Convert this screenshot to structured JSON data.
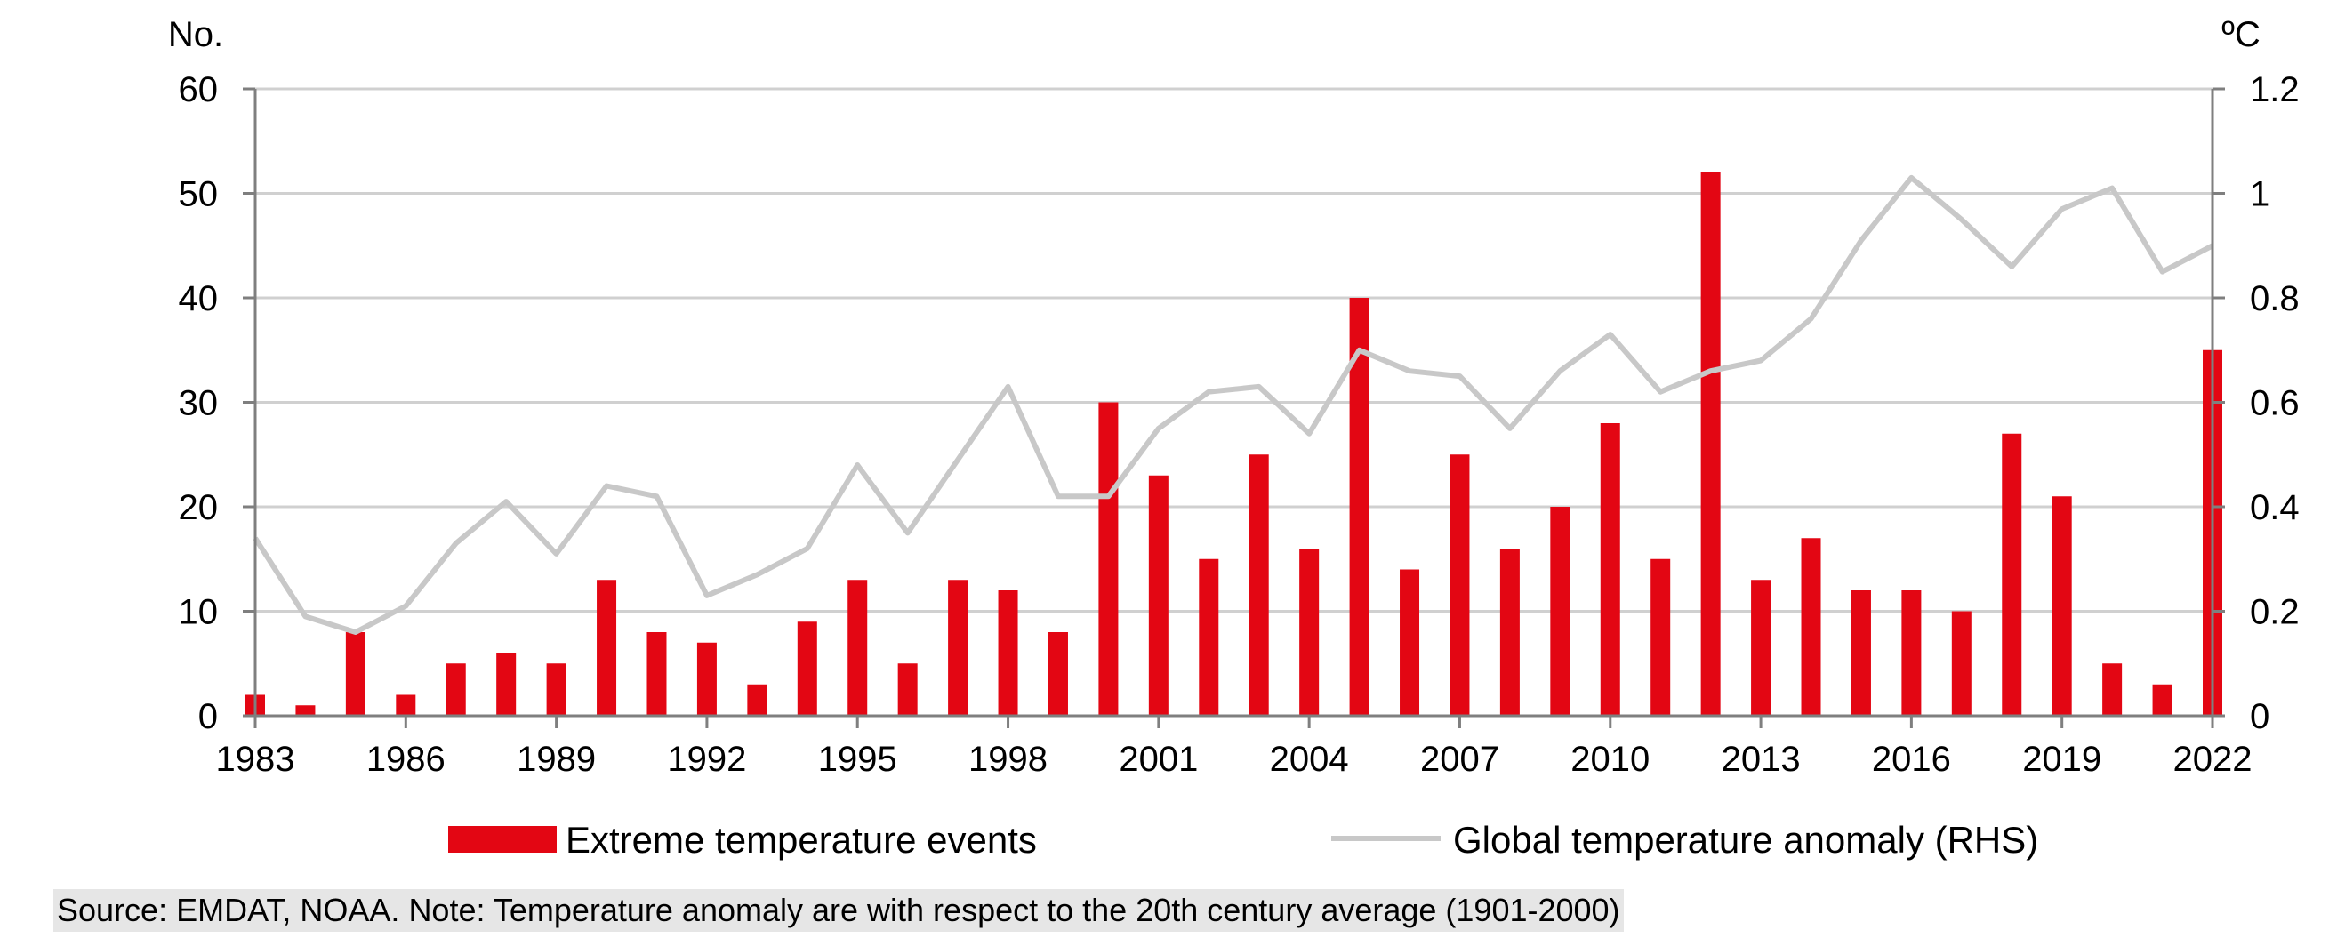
{
  "chart_data": {
    "type": "bar",
    "x": [
      1983,
      1984,
      1985,
      1986,
      1987,
      1988,
      1989,
      1990,
      1991,
      1992,
      1993,
      1994,
      1995,
      1996,
      1997,
      1998,
      1999,
      2000,
      2001,
      2002,
      2003,
      2004,
      2005,
      2006,
      2007,
      2008,
      2009,
      2010,
      2011,
      2012,
      2013,
      2014,
      2015,
      2016,
      2017,
      2018,
      2019,
      2020,
      2021,
      2022
    ],
    "x_tick_labels": [
      "1983",
      "1986",
      "1989",
      "1992",
      "1995",
      "1998",
      "2001",
      "2004",
      "2007",
      "2010",
      "2013",
      "2016",
      "2019",
      "2022"
    ],
    "series": [
      {
        "name": "Extreme temperature events",
        "type": "bar",
        "axis": "left",
        "color": "#e30613",
        "values": [
          2,
          1,
          8,
          2,
          5,
          6,
          5,
          13,
          8,
          7,
          3,
          9,
          13,
          5,
          13,
          12,
          8,
          30,
          23,
          15,
          25,
          16,
          40,
          14,
          25,
          16,
          20,
          28,
          15,
          52,
          13,
          17,
          12,
          12,
          10,
          27,
          21,
          5,
          3,
          35
        ]
      },
      {
        "name": "Global temperature anomaly (RHS)",
        "type": "line",
        "axis": "right",
        "color": "#c8c8c8",
        "values": [
          0.34,
          0.19,
          0.16,
          0.21,
          0.33,
          0.41,
          0.31,
          0.44,
          0.42,
          0.23,
          0.27,
          0.32,
          0.48,
          0.35,
          0.49,
          0.63,
          0.42,
          0.42,
          0.55,
          0.62,
          0.63,
          0.54,
          0.7,
          0.66,
          0.65,
          0.55,
          0.66,
          0.73,
          0.62,
          0.66,
          0.68,
          0.76,
          0.91,
          1.03,
          0.95,
          0.86,
          0.97,
          1.01,
          0.85,
          0.9
        ]
      }
    ],
    "left_axis": {
      "unit": "No.",
      "ylim": [
        0,
        60
      ],
      "ticks": [
        "0",
        "10",
        "20",
        "30",
        "40",
        "50",
        "60"
      ]
    },
    "right_axis": {
      "unit": "ºC",
      "ylim": [
        0,
        1.2
      ],
      "ticks": [
        "0",
        "0.2",
        "0.4",
        "0.6",
        "0.8",
        "1",
        "1.2"
      ]
    },
    "grid": true,
    "legend_position": "bottom"
  },
  "footnote": "Source: EMDAT, NOAA.  Note: Temperature anomaly are with respect to the 20th century average (1901-2000)"
}
